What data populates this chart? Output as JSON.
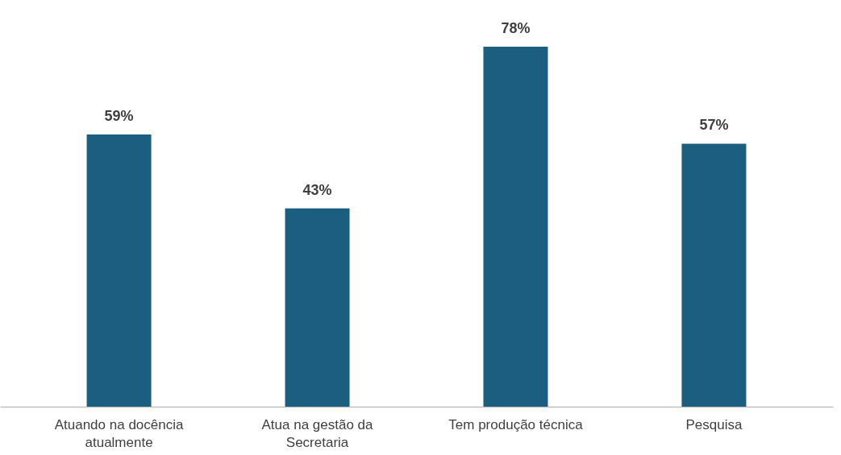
{
  "chart_data": {
    "type": "bar",
    "categories": [
      "Atuando na docência atualmente",
      "Atua na gestão da Secretaria",
      "Tem produção técnica",
      "Pesquisa"
    ],
    "values": [
      59,
      43,
      78,
      57
    ],
    "value_labels": [
      "59%",
      "43%",
      "78%",
      "57%"
    ],
    "color": "#1b5e7f"
  }
}
